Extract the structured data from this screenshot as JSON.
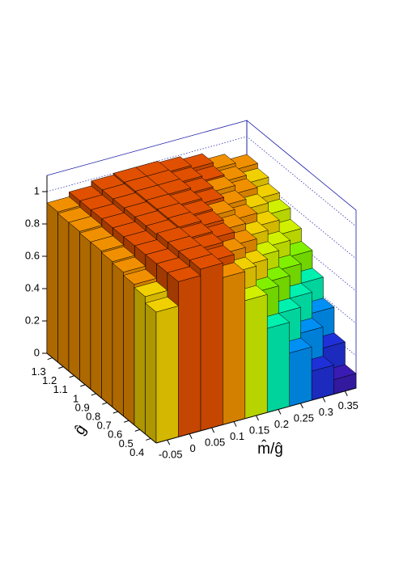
{
  "chart_data": {
    "type": "lego",
    "x_title": "m̂/ĝ",
    "y_title": "ĝ",
    "x": [
      -0.05,
      0,
      0.05,
      0.1,
      0.15,
      0.2,
      0.25,
      0.3,
      0.35
    ],
    "y": [
      0.4,
      0.5,
      0.6,
      0.7,
      0.8,
      0.9,
      1.0,
      1.1,
      1.2,
      1.3
    ],
    "xlim": [
      -0.075,
      0.375
    ],
    "ylim": [
      0.35,
      1.35
    ],
    "zlim": [
      0,
      1.1
    ],
    "xticks": [
      -0.05,
      0,
      0.05,
      0.1,
      0.15,
      0.2,
      0.25,
      0.3,
      0.35
    ],
    "yticks": [
      0.4,
      0.5,
      0.6,
      0.7,
      0.8,
      0.9,
      1,
      1.1,
      1.2,
      1.3
    ],
    "zticks": [
      0,
      0.2,
      0.4,
      0.6,
      0.8,
      1
    ],
    "values": [
      [
        0.81,
        0.96,
        1.0,
        0.91,
        0.73,
        0.52,
        0.33,
        0.18,
        0.09
      ],
      [
        0.85,
        0.96,
        1.0,
        0.96,
        0.85,
        0.69,
        0.52,
        0.36,
        0.23
      ],
      [
        0.87,
        0.96,
        1.0,
        0.98,
        0.91,
        0.8,
        0.66,
        0.52,
        0.39
      ],
      [
        0.89,
        0.96,
        1.0,
        0.99,
        0.95,
        0.87,
        0.76,
        0.64,
        0.52
      ],
      [
        0.9,
        0.96,
        0.99,
        1.0,
        0.97,
        0.91,
        0.83,
        0.73,
        0.63
      ],
      [
        0.91,
        0.96,
        0.99,
        1.0,
        0.98,
        0.94,
        0.88,
        0.8,
        0.71
      ],
      [
        0.91,
        0.96,
        0.99,
        1.0,
        0.99,
        0.96,
        0.91,
        0.85,
        0.78
      ],
      [
        0.92,
        0.96,
        0.99,
        1.0,
        1.0,
        0.97,
        0.94,
        0.89,
        0.82
      ],
      [
        0.92,
        0.96,
        0.99,
        1.0,
        1.0,
        0.98,
        0.95,
        0.91,
        0.86
      ],
      [
        0.93,
        0.96,
        0.99,
        1.0,
        1.0,
        0.99,
        0.97,
        0.93,
        0.89
      ]
    ],
    "palette": [
      "#50108c",
      "#3a1cb4",
      "#2030d8",
      "#0c58ee",
      "#0090f4",
      "#00d8f4",
      "#00f0b0",
      "#20f040",
      "#80f000",
      "#d0f000",
      "#f0d000",
      "#f09000",
      "#e05000",
      "#c01000"
    ],
    "box_color": "#1a1aa8"
  }
}
